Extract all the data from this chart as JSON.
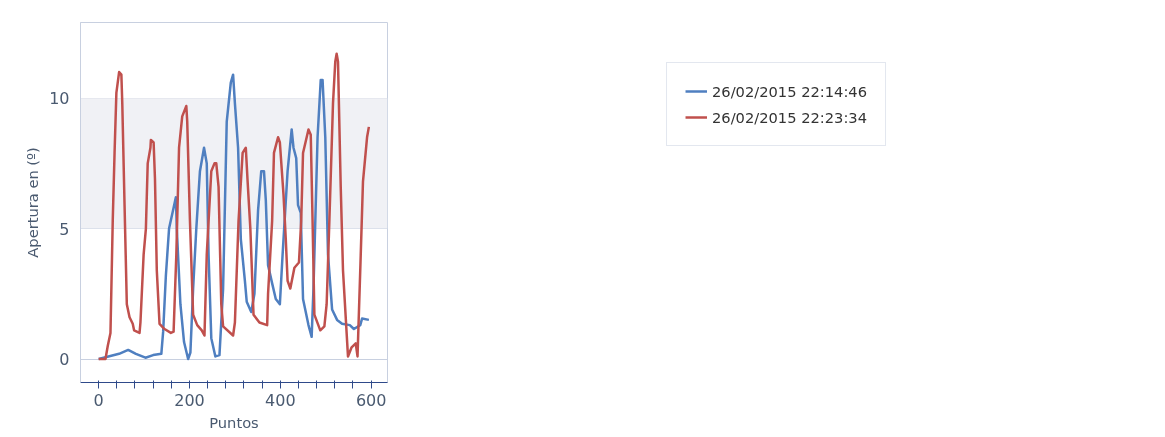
{
  "chart_data": {
    "type": "line",
    "xlabel": "Puntos",
    "ylabel": "Apertura en (º)",
    "xlim": [
      -40,
      636
    ],
    "ylim": [
      -0.9,
      12.9
    ],
    "xticks": [
      0,
      {
        "value": 40,
        "label": null
      },
      {
        "value": 80,
        "label": null
      },
      {
        "value": 120,
        "label": null
      },
      {
        "value": 160,
        "label": null
      },
      200,
      {
        "value": 240,
        "label": null
      },
      {
        "value": 280,
        "label": null
      },
      {
        "value": 320,
        "label": null
      },
      {
        "value": 360,
        "label": null
      },
      400,
      {
        "value": 440,
        "label": null
      },
      {
        "value": 480,
        "label": null
      },
      {
        "value": 520,
        "label": null
      },
      {
        "value": 560,
        "label": null
      },
      600
    ],
    "yticks": [
      0,
      5,
      10
    ],
    "grid": "y",
    "legend": "top right",
    "line_style": "solid",
    "bands": [
      {
        "axis": "y",
        "from": 5,
        "to": 10,
        "color": "#f0f1f5"
      }
    ],
    "series": [
      {
        "name": "26/02/2015 22:14:46",
        "color": "#4f7fc0",
        "x": [
          0,
          45,
          65,
          82,
          103,
          120,
          138,
          142,
          148,
          155,
          165,
          170,
          172,
          180,
          188,
          197,
          202,
          208,
          215,
          223,
          232,
          238,
          242,
          248,
          257,
          266,
          274,
          282,
          291,
          296,
          300,
          307,
          313,
          322,
          326,
          336,
          343,
          351,
          358,
          364,
          368,
          373,
          382,
          390,
          399,
          405,
          416,
          425,
          429,
          435,
          439,
          445,
          450,
          462,
          469,
          473,
          482,
          489,
          493,
          499,
          505,
          514,
          525,
          536,
          553,
          562,
          576,
          580,
          595
        ],
        "values": [
          0,
          0.2,
          0.35,
          0.2,
          0.05,
          0.15,
          0.2,
          1.05,
          3.2,
          5.0,
          5.8,
          6.2,
          5.0,
          2.1,
          0.65,
          0,
          0.25,
          2.7,
          5.0,
          7.2,
          8.1,
          7.5,
          4.0,
          0.8,
          0.1,
          0.15,
          2.7,
          9.1,
          10.6,
          10.9,
          9.8,
          8.1,
          4.6,
          3.0,
          2.2,
          1.8,
          2.5,
          5.7,
          7.2,
          7.2,
          6.1,
          3.6,
          2.9,
          2.3,
          2.1,
          4.0,
          7.2,
          8.8,
          8.1,
          7.7,
          5.9,
          5.6,
          2.3,
          1.3,
          0.85,
          2.7,
          8.5,
          10.7,
          10.7,
          8.5,
          4.0,
          1.9,
          1.5,
          1.35,
          1.3,
          1.15,
          1.3,
          1.55,
          1.5
        ]
      },
      {
        "name": "26/02/2015 22:23:34",
        "color": "#c0504d",
        "x": [
          0,
          15,
          20,
          26,
          31,
          35,
          39,
          45,
          50,
          52,
          57,
          62,
          68,
          75,
          78,
          90,
          92,
          99,
          104,
          108,
          114,
          115,
          121,
          124,
          128,
          134,
          145,
          159,
          165,
          171,
          177,
          184,
          193,
          195,
          201,
          208,
          217,
          227,
          233,
          238,
          248,
          255,
          259,
          264,
          270,
          274,
          296,
          300,
          308,
          317,
          324,
          328,
          334,
          341,
          354,
          371,
          373,
          382,
          386,
          395,
          399,
          407,
          412,
          416,
          422,
          431,
          441,
          446,
          450,
          462,
          467,
          471,
          475,
          488,
          497,
          502,
          508,
          516,
          521,
          524,
          527,
          533,
          538,
          549,
          557,
          566,
          570,
          576,
          582,
          591,
          595
        ],
        "values": [
          0,
          0,
          0.5,
          1.0,
          5.3,
          7.9,
          10.2,
          11.0,
          10.9,
          9.8,
          5.9,
          2.1,
          1.6,
          1.35,
          1.1,
          1.0,
          1.4,
          4.0,
          5.0,
          7.5,
          8.1,
          8.4,
          8.3,
          6.9,
          3.4,
          1.35,
          1.15,
          1.0,
          1.05,
          4.0,
          8.1,
          9.3,
          9.7,
          9.1,
          5.3,
          1.7,
          1.3,
          1.1,
          0.9,
          4.0,
          7.2,
          7.5,
          7.5,
          6.6,
          2.1,
          1.25,
          0.9,
          1.4,
          5.3,
          7.9,
          8.1,
          6.8,
          5.0,
          1.7,
          1.4,
          1.3,
          2.5,
          5.3,
          7.9,
          8.5,
          8.3,
          6.3,
          4.6,
          3.0,
          2.7,
          3.5,
          3.7,
          5.3,
          7.9,
          8.8,
          8.6,
          5.3,
          1.7,
          1.1,
          1.25,
          2.1,
          5.3,
          9.8,
          11.4,
          11.7,
          11.4,
          6.6,
          3.4,
          0.1,
          0.45,
          0.6,
          0.1,
          3.4,
          6.8,
          8.5,
          8.9
        ]
      }
    ]
  }
}
